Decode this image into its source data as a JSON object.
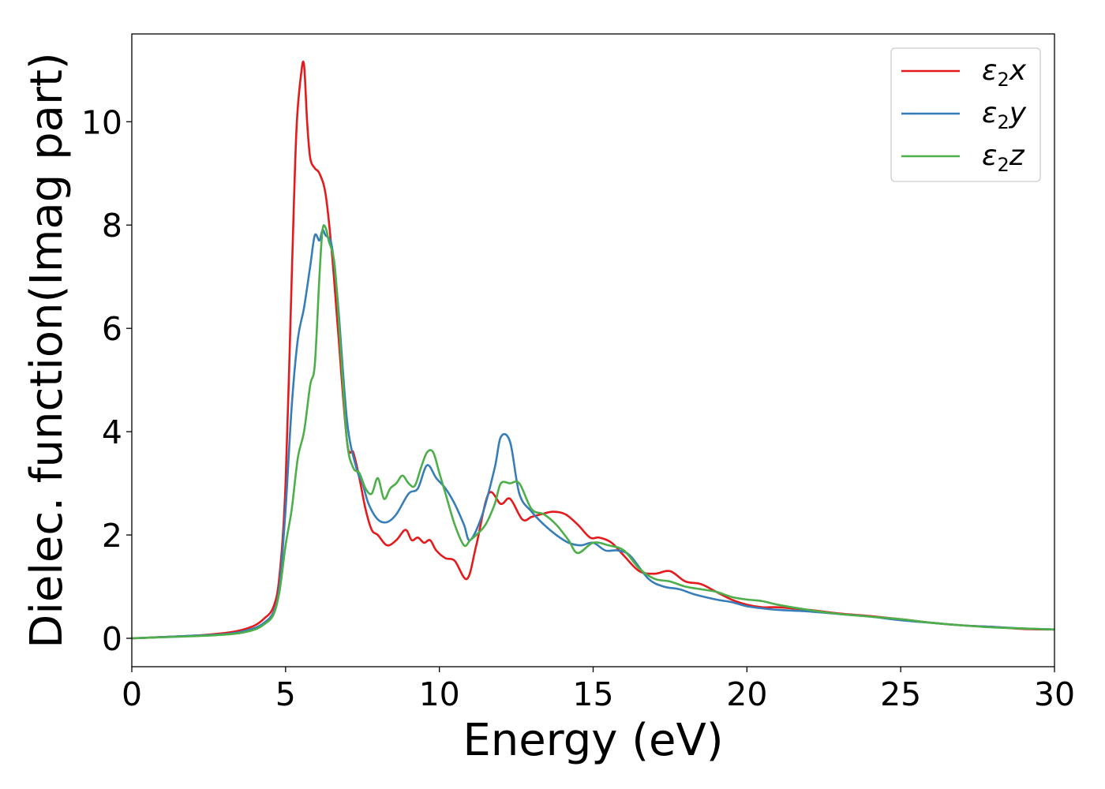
{
  "chart_data": {
    "type": "line",
    "xlabel": "Energy (eV)",
    "ylabel": "Dielec. function(Imag part)",
    "xlim": [
      0,
      30
    ],
    "ylim": [
      -0.55,
      11.7
    ],
    "xticks": [
      0,
      5,
      10,
      15,
      20,
      25,
      30
    ],
    "yticks": [
      0,
      2,
      4,
      6,
      8,
      10
    ],
    "xtick_labels": [
      "0",
      "5",
      "10",
      "15",
      "20",
      "25",
      "30"
    ],
    "ytick_labels": [
      "0",
      "2",
      "4",
      "6",
      "8",
      "10"
    ],
    "grid": false,
    "legend_position": "top-right",
    "series": [
      {
        "name": "ε2x",
        "legend_base": "ε",
        "legend_sub": "2",
        "legend_var": "x",
        "color": "#e41a1c",
        "x": [
          0,
          2,
          3,
          3.5,
          4,
          4.3,
          4.6,
          4.8,
          5.0,
          5.2,
          5.35,
          5.5,
          5.6,
          5.7,
          5.8,
          5.95,
          6.1,
          6.3,
          6.5,
          6.7,
          7.0,
          7.2,
          7.4,
          7.6,
          7.8,
          8.0,
          8.3,
          8.6,
          8.9,
          9.1,
          9.3,
          9.5,
          9.7,
          9.9,
          10.2,
          10.5,
          10.9,
          11.2,
          11.6,
          12.0,
          12.3,
          12.7,
          13.0,
          13.3,
          13.7,
          14.1,
          14.5,
          14.9,
          15.2,
          15.6,
          16.0,
          16.5,
          17.0,
          17.5,
          18.0,
          18.5,
          19.0,
          19.5,
          20.0,
          20.5,
          21.0,
          22.0,
          23.0,
          24.0,
          25.0,
          26.0,
          27.0,
          28.0,
          29.0,
          30.0
        ],
        "y": [
          0,
          0.05,
          0.1,
          0.15,
          0.25,
          0.38,
          0.6,
          1.2,
          3.0,
          7.0,
          9.8,
          10.9,
          11.1,
          10.0,
          9.3,
          9.1,
          9.0,
          8.6,
          7.5,
          6.0,
          3.8,
          3.6,
          3.1,
          2.5,
          2.1,
          2.0,
          1.8,
          1.9,
          2.1,
          1.9,
          1.95,
          1.85,
          1.9,
          1.7,
          1.55,
          1.5,
          1.15,
          1.8,
          2.8,
          2.6,
          2.7,
          2.3,
          2.35,
          2.4,
          2.45,
          2.4,
          2.2,
          1.95,
          1.95,
          1.85,
          1.6,
          1.3,
          1.25,
          1.3,
          1.1,
          1.05,
          0.9,
          0.75,
          0.65,
          0.6,
          0.6,
          0.55,
          0.48,
          0.43,
          0.37,
          0.3,
          0.25,
          0.22,
          0.18,
          0.17
        ]
      },
      {
        "name": "ε2y",
        "legend_base": "ε",
        "legend_sub": "2",
        "legend_var": "y",
        "color": "#377eb8",
        "x": [
          0,
          2,
          3,
          3.5,
          4,
          4.3,
          4.6,
          4.8,
          5.0,
          5.2,
          5.4,
          5.6,
          5.8,
          5.95,
          6.1,
          6.2,
          6.3,
          6.5,
          6.7,
          7.0,
          7.3,
          7.5,
          7.7,
          8.0,
          8.3,
          8.6,
          9.0,
          9.3,
          9.6,
          9.9,
          10.2,
          10.5,
          10.8,
          11.0,
          11.4,
          11.8,
          12.0,
          12.3,
          12.6,
          13.0,
          13.4,
          13.8,
          14.2,
          14.6,
          15.0,
          15.4,
          15.8,
          16.2,
          16.8,
          17.3,
          17.8,
          18.3,
          19.0,
          19.5,
          20.0,
          20.5,
          21.0,
          22.0,
          23.0,
          24.0,
          25.0,
          26.0,
          27.0,
          28.0,
          29.0,
          30.0
        ],
        "y": [
          0,
          0.05,
          0.08,
          0.12,
          0.2,
          0.3,
          0.5,
          1.0,
          2.5,
          4.5,
          5.8,
          6.4,
          7.2,
          7.8,
          7.7,
          7.9,
          7.8,
          7.6,
          6.5,
          4.2,
          3.3,
          3.0,
          2.6,
          2.3,
          2.25,
          2.4,
          2.8,
          2.9,
          3.35,
          3.1,
          2.9,
          2.6,
          2.2,
          1.9,
          2.4,
          3.3,
          3.9,
          3.8,
          2.8,
          2.45,
          2.2,
          2.0,
          1.85,
          1.8,
          1.85,
          1.7,
          1.7,
          1.6,
          1.15,
          1.0,
          0.95,
          0.85,
          0.75,
          0.7,
          0.62,
          0.58,
          0.55,
          0.52,
          0.47,
          0.42,
          0.35,
          0.3,
          0.25,
          0.22,
          0.19,
          0.17
        ]
      },
      {
        "name": "ε2z",
        "legend_base": "ε",
        "legend_sub": "2",
        "legend_var": "z",
        "color": "#4daf4a",
        "x": [
          0,
          2,
          3,
          3.5,
          4,
          4.3,
          4.6,
          4.8,
          5.0,
          5.2,
          5.4,
          5.6,
          5.8,
          5.95,
          6.1,
          6.2,
          6.3,
          6.4,
          6.6,
          6.8,
          7.0,
          7.2,
          7.4,
          7.6,
          7.8,
          8.0,
          8.2,
          8.4,
          8.6,
          8.8,
          9.0,
          9.2,
          9.4,
          9.6,
          9.8,
          10.0,
          10.2,
          10.5,
          10.8,
          11.0,
          11.2,
          11.5,
          11.8,
          12.0,
          12.3,
          12.6,
          13.0,
          13.4,
          13.8,
          14.2,
          14.5,
          15.0,
          15.5,
          16.0,
          16.5,
          17.0,
          17.5,
          18.0,
          18.5,
          19.0,
          19.5,
          20.0,
          20.5,
          21.0,
          22.0,
          23.0,
          24.0,
          25.0,
          26.0,
          27.0,
          28.0,
          29.0,
          30.0
        ],
        "y": [
          0,
          0.04,
          0.07,
          0.1,
          0.17,
          0.27,
          0.45,
          0.9,
          1.8,
          2.5,
          3.5,
          4.0,
          4.9,
          5.3,
          7.0,
          7.9,
          7.95,
          7.7,
          7.2,
          5.5,
          3.8,
          3.3,
          3.2,
          2.9,
          2.8,
          3.1,
          2.7,
          2.9,
          3.0,
          3.15,
          3.0,
          2.95,
          3.3,
          3.6,
          3.6,
          3.2,
          2.8,
          2.2,
          1.8,
          1.9,
          2.0,
          2.2,
          2.6,
          3.0,
          3.0,
          3.0,
          2.5,
          2.4,
          2.2,
          1.9,
          1.65,
          1.85,
          1.8,
          1.7,
          1.35,
          1.15,
          1.1,
          1.0,
          0.95,
          0.9,
          0.8,
          0.75,
          0.72,
          0.65,
          0.55,
          0.47,
          0.42,
          0.37,
          0.3,
          0.25,
          0.21,
          0.19,
          0.17
        ]
      }
    ]
  }
}
